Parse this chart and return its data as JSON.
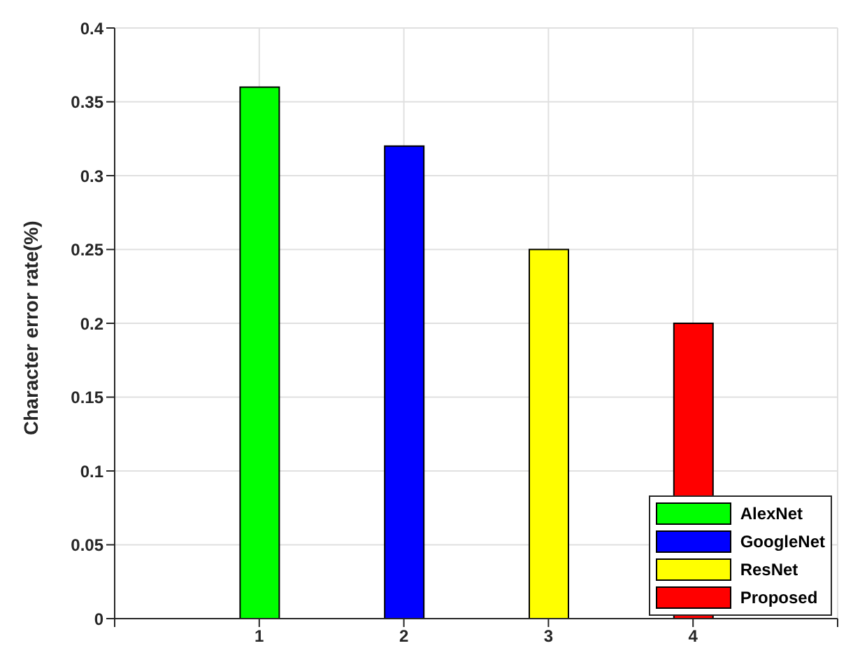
{
  "chart_data": {
    "type": "bar",
    "ylabel": "Character error rate(%)",
    "xlim": [
      0,
      5
    ],
    "xticks": [
      {
        "value": 0,
        "label": null
      },
      1,
      2,
      3,
      4,
      {
        "value": 5,
        "label": null
      }
    ],
    "ylim": [
      0,
      0.4
    ],
    "yticks": [
      0,
      0.05,
      0.1,
      0.15,
      0.2,
      0.25,
      0.3,
      0.35,
      0.4
    ],
    "series": [
      {
        "name": "AlexNet",
        "color": "#00ff00",
        "x": [
          1
        ],
        "values": [
          0.36
        ]
      },
      {
        "name": "GoogleNet",
        "color": "#0000ff",
        "x": [
          2
        ],
        "values": [
          0.32
        ]
      },
      {
        "name": "ResNet",
        "color": "#ffff00",
        "x": [
          3
        ],
        "values": [
          0.25
        ]
      },
      {
        "name": "Proposed",
        "color": "#ff0000",
        "x": [
          4
        ],
        "values": [
          0.2
        ]
      }
    ],
    "grid": true,
    "legend": "bottom right"
  }
}
